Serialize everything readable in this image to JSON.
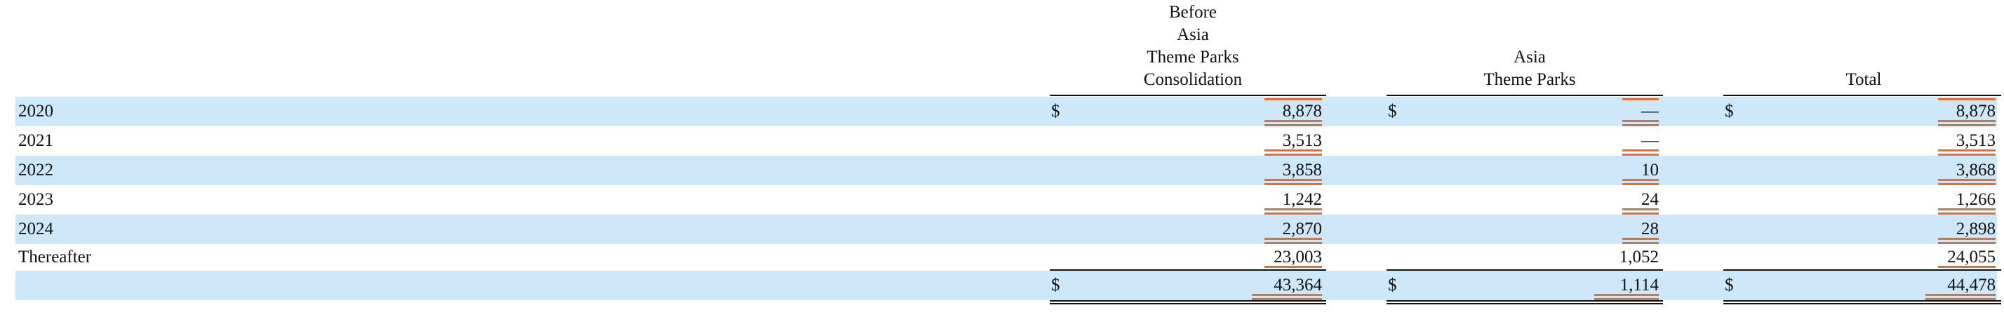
{
  "headers": {
    "col1": [
      "Before",
      "Asia",
      "Theme Parks",
      "Consolidation"
    ],
    "col2": [
      "Asia",
      "Theme Parks"
    ],
    "col3": [
      "Total"
    ]
  },
  "currency_symbol": "$",
  "rows": [
    {
      "label": "2020",
      "c1": "8,878",
      "c2": "—",
      "c3": "8,878",
      "dollar": true
    },
    {
      "label": "2021",
      "c1": "3,513",
      "c2": "—",
      "c3": "3,513",
      "dollar": false
    },
    {
      "label": "2022",
      "c1": "3,858",
      "c2": "10",
      "c3": "3,868",
      "dollar": false
    },
    {
      "label": "2023",
      "c1": "1,242",
      "c2": "24",
      "c3": "1,266",
      "dollar": false
    },
    {
      "label": "2024",
      "c1": "2,870",
      "c2": "28",
      "c3": "2,898",
      "dollar": false
    },
    {
      "label": "Thereafter",
      "c1": "23,003",
      "c2": "1,052",
      "c3": "24,055",
      "dollar": false
    }
  ],
  "total": {
    "label": "",
    "c1": "43,364",
    "c2": "1,114",
    "c3": "44,478"
  },
  "colors": {
    "row_shade": "#cfe8f9",
    "highlight_mark": "#e0703a"
  }
}
